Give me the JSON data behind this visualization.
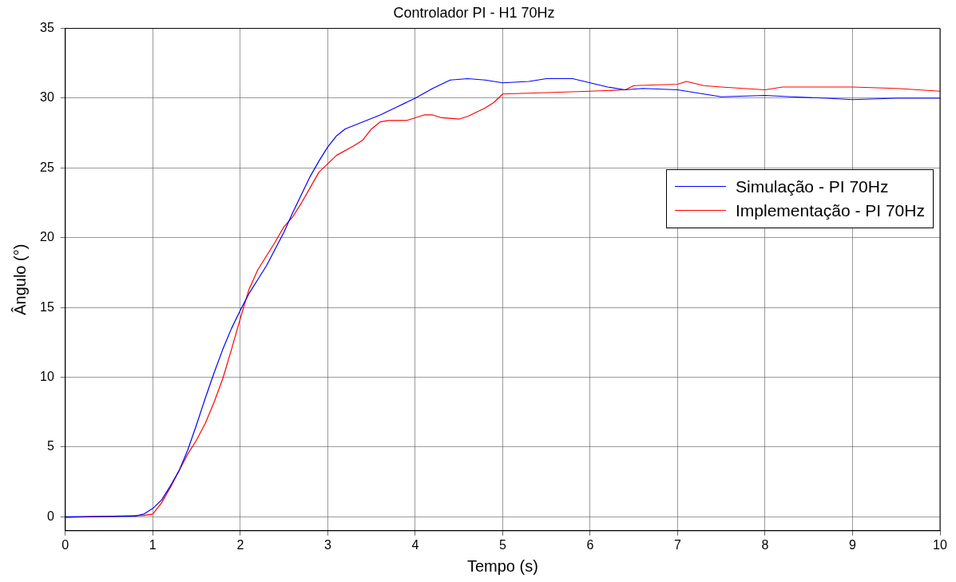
{
  "chart_data": {
    "type": "line",
    "title": "Controlador PI - H1 70Hz",
    "xlabel": "Tempo (s)",
    "ylabel": "Ângulo (°)",
    "xlim": [
      0,
      10
    ],
    "xticks": [
      0,
      1,
      2,
      3,
      4,
      5,
      6,
      7,
      8,
      9,
      10
    ],
    "ylim": [
      -1,
      35
    ],
    "yticks": [
      0,
      5,
      10,
      15,
      20,
      25,
      30,
      35
    ],
    "grid": true,
    "legend": "right",
    "line_style": "solid",
    "marker": "none",
    "series": [
      {
        "name": "Simulação - PI 70Hz",
        "color": "#0000ff",
        "x": [
          0,
          0.8,
          0.9,
          1.0,
          1.1,
          1.2,
          1.3,
          1.4,
          1.5,
          1.6,
          1.7,
          1.8,
          1.9,
          2.0,
          2.1,
          2.2,
          2.3,
          2.4,
          2.5,
          2.6,
          2.7,
          2.8,
          2.9,
          3.0,
          3.1,
          3.2,
          3.4,
          3.6,
          3.8,
          4.0,
          4.2,
          4.4,
          4.6,
          4.8,
          5.0,
          5.3,
          5.5,
          5.8,
          6.0,
          6.2,
          6.4,
          6.6,
          7.0,
          7.3,
          7.5,
          8.0,
          8.3,
          8.7,
          9.0,
          9.5,
          10
        ],
        "values": [
          0,
          0.05,
          0.2,
          0.6,
          1.2,
          2.2,
          3.3,
          4.8,
          6.6,
          8.5,
          10.3,
          12.0,
          13.5,
          14.8,
          16.0,
          17.0,
          18.0,
          19.2,
          20.4,
          21.8,
          23.1,
          24.4,
          25.5,
          26.5,
          27.3,
          27.8,
          28.3,
          28.8,
          29.4,
          30.0,
          30.7,
          31.3,
          31.4,
          31.3,
          31.1,
          31.2,
          31.4,
          31.4,
          31.1,
          30.8,
          30.6,
          30.7,
          30.6,
          30.3,
          30.1,
          30.2,
          30.1,
          30.0,
          29.9,
          30.0,
          30.0
        ]
      },
      {
        "name": "Implementação - PI 70Hz",
        "color": "#ff0000",
        "x": [
          0,
          0.9,
          1.0,
          1.1,
          1.2,
          1.3,
          1.4,
          1.5,
          1.6,
          1.7,
          1.8,
          1.9,
          2.0,
          2.1,
          2.2,
          2.3,
          2.4,
          2.5,
          2.6,
          2.7,
          2.8,
          2.9,
          3.0,
          3.1,
          3.3,
          3.4,
          3.5,
          3.6,
          3.7,
          3.9,
          4.1,
          4.2,
          4.3,
          4.5,
          4.6,
          4.8,
          4.9,
          5.0,
          5.5,
          6.0,
          6.4,
          6.5,
          7.0,
          7.1,
          7.3,
          7.5,
          8.0,
          8.2,
          9.0,
          9.5,
          10
        ],
        "values": [
          -0.05,
          0.1,
          0.2,
          1.0,
          2.1,
          3.3,
          4.5,
          5.5,
          6.7,
          8.2,
          9.9,
          12.0,
          14.2,
          16.3,
          17.7,
          18.7,
          19.7,
          20.8,
          21.5,
          22.5,
          23.6,
          24.7,
          25.3,
          25.9,
          26.6,
          27.0,
          27.8,
          28.3,
          28.4,
          28.4,
          28.8,
          28.8,
          28.6,
          28.5,
          28.7,
          29.3,
          29.7,
          30.3,
          30.4,
          30.5,
          30.6,
          30.9,
          31.0,
          31.2,
          30.9,
          30.8,
          30.6,
          30.8,
          30.8,
          30.7,
          30.5
        ]
      }
    ]
  }
}
